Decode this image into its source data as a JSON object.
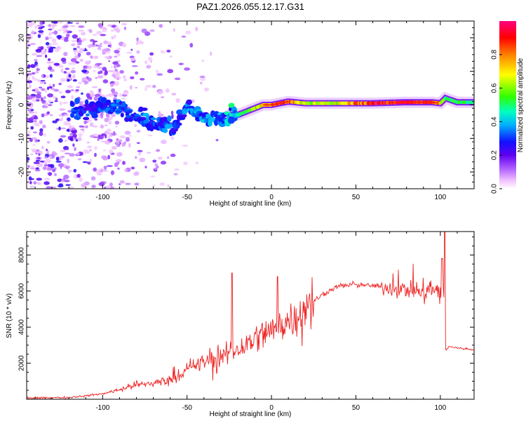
{
  "title": "PAZ1.2026.055.12.17.G31",
  "chart_data": [
    {
      "type": "heatmap",
      "name": "spectrogram",
      "xlabel": "Height of straight line (km)",
      "ylabel": "Frequency (Hz)",
      "xlim": [
        -145,
        120
      ],
      "ylim": [
        -25,
        25
      ],
      "xticks": [
        -100,
        -50,
        0,
        50,
        100
      ],
      "yticks": [
        -20,
        -10,
        0,
        10,
        20
      ],
      "colorbar": {
        "label": "Normalized spectral amplitude",
        "range": [
          0,
          1
        ],
        "ticks": [
          0.0,
          0.2,
          0.4,
          0.6,
          0.8
        ],
        "colors": [
          "#ffffff",
          "#f0c0ff",
          "#b060ff",
          "#7000f0",
          "#1010ff",
          "#00b0ff",
          "#00ffc0",
          "#40ff00",
          "#ffff00",
          "#ff8000",
          "#ff0000",
          "#ff0080"
        ]
      },
      "ridge": {
        "x": [
          -115,
          -105,
          -95,
          -85,
          -75,
          -65,
          -58,
          -50,
          -40,
          -32,
          -25,
          -20,
          -15,
          -10,
          -5,
          0,
          5,
          10,
          20,
          40,
          60,
          80,
          95,
          100,
          103,
          110,
          120
        ],
        "y": [
          -2,
          -1,
          0,
          -2,
          -4,
          -6,
          -7,
          -1,
          -4,
          -5,
          -3,
          -3,
          -2,
          -1,
          0,
          0,
          0.5,
          1,
          0.5,
          0.5,
          0.5,
          0.8,
          0.8,
          0.5,
          2,
          0.8,
          0.8
        ],
        "amplitude": [
          0.25,
          0.25,
          0.3,
          0.3,
          0.3,
          0.3,
          0.3,
          0.3,
          0.35,
          0.35,
          0.4,
          0.45,
          0.5,
          0.6,
          0.7,
          0.8,
          0.85,
          0.85,
          0.6,
          0.65,
          0.9,
          0.95,
          0.9,
          0.7,
          0.5,
          0.5,
          0.5
        ]
      }
    },
    {
      "type": "line",
      "name": "snr",
      "xlabel": "Height of straight line (km)",
      "ylabel": "SNR (10 * v/v)",
      "xlim": [
        -145,
        120
      ],
      "ylim": [
        0,
        9300
      ],
      "xticks": [
        -100,
        -50,
        0,
        50,
        100
      ],
      "yticks": [
        2000,
        4000,
        6000,
        8000
      ],
      "color": "#ee2222",
      "envelope": {
        "x": [
          -145,
          -120,
          -100,
          -90,
          -80,
          -70,
          -60,
          -50,
          -40,
          -30,
          -25,
          -20,
          -10,
          0,
          10,
          20,
          30,
          40,
          50,
          60,
          70,
          80,
          90,
          100,
          102,
          103,
          105,
          110,
          120
        ],
        "y": [
          50,
          100,
          300,
          550,
          800,
          900,
          1100,
          1600,
          2100,
          2300,
          2600,
          2700,
          3400,
          3800,
          4400,
          5000,
          5800,
          6300,
          6350,
          6300,
          6200,
          6100,
          6000,
          6000,
          6200,
          2700,
          2900,
          2850,
          2750
        ]
      },
      "peaks": [
        {
          "x": -23.5,
          "y": 7000
        },
        {
          "x": 102.5,
          "y": 9300
        },
        {
          "x": 101,
          "y": 7800
        },
        {
          "x": 3.5,
          "y": 6800
        }
      ]
    }
  ]
}
